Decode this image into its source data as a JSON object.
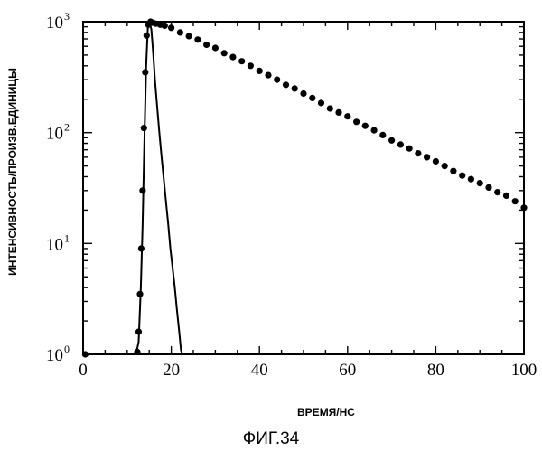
{
  "chart_data": {
    "type": "scatter",
    "xlabel": "ВРЕМЯ/НС",
    "ylabel": "ИНТЕНСИВНОСТЬ/ПРОИЗВ.ЕДИНИЦЫ",
    "xlim": [
      0,
      100
    ],
    "ylim": [
      1,
      1000
    ],
    "yscale": "log",
    "xticks": [
      "0",
      "20",
      "40",
      "60",
      "80",
      "100"
    ],
    "yticks": [
      {
        "base": "10",
        "exp": "0"
      },
      {
        "base": "10",
        "exp": "1"
      },
      {
        "base": "10",
        "exp": "2"
      },
      {
        "base": "10",
        "exp": "3"
      }
    ],
    "grid": false,
    "legend": "none",
    "series": [
      {
        "style": "filled-circle markers",
        "points": [
          [
            0.5,
            1
          ],
          [
            12.3,
            1.05
          ],
          [
            12.6,
            1.6
          ],
          [
            12.9,
            3.5
          ],
          [
            13.2,
            9
          ],
          [
            13.5,
            30
          ],
          [
            13.8,
            110
          ],
          [
            14.1,
            350
          ],
          [
            14.4,
            750
          ],
          [
            14.8,
            940
          ],
          [
            15.3,
            1000
          ],
          [
            15.8,
            980
          ],
          [
            16.5,
            960
          ],
          [
            17.5,
            940
          ],
          [
            18.5,
            920
          ],
          [
            20,
            880
          ],
          [
            22,
            800
          ],
          [
            24,
            740
          ],
          [
            26,
            690
          ],
          [
            28,
            620
          ],
          [
            30,
            580
          ],
          [
            32,
            520
          ],
          [
            34,
            480
          ],
          [
            36,
            440
          ],
          [
            38,
            400
          ],
          [
            40,
            360
          ],
          [
            42,
            330
          ],
          [
            44,
            300
          ],
          [
            46,
            270
          ],
          [
            48,
            250
          ],
          [
            50,
            225
          ],
          [
            52,
            205
          ],
          [
            54,
            185
          ],
          [
            56,
            165
          ],
          [
            58,
            152
          ],
          [
            60,
            140
          ],
          [
            62,
            125
          ],
          [
            64,
            115
          ],
          [
            66,
            105
          ],
          [
            68,
            95
          ],
          [
            70,
            85
          ],
          [
            72,
            78
          ],
          [
            74,
            72
          ],
          [
            76,
            65
          ],
          [
            78,
            60
          ],
          [
            80,
            55
          ],
          [
            82,
            50
          ],
          [
            84,
            45
          ],
          [
            86,
            41
          ],
          [
            88,
            38
          ],
          [
            90,
            35
          ],
          [
            92,
            32
          ],
          [
            94,
            29
          ],
          [
            96,
            27
          ],
          [
            98,
            24
          ],
          [
            100,
            21
          ]
        ]
      },
      {
        "style": "solid line",
        "points": [
          [
            12,
            1
          ],
          [
            12.6,
            1.3
          ],
          [
            13.1,
            4
          ],
          [
            13.5,
            15
          ],
          [
            13.9,
            80
          ],
          [
            14.3,
            400
          ],
          [
            14.7,
            900
          ],
          [
            15.1,
            980
          ],
          [
            15.5,
            850
          ],
          [
            15.9,
            520
          ],
          [
            16.3,
            300
          ],
          [
            16.8,
            170
          ],
          [
            17.3,
            100
          ],
          [
            17.8,
            60
          ],
          [
            18.3,
            38
          ],
          [
            18.8,
            24
          ],
          [
            19.3,
            15
          ],
          [
            19.8,
            9
          ],
          [
            20.3,
            6
          ],
          [
            20.8,
            4
          ],
          [
            21.3,
            2.5
          ],
          [
            21.8,
            1.6
          ],
          [
            22.2,
            1.1
          ],
          [
            22.5,
            1
          ]
        ]
      }
    ]
  },
  "caption": "ФИГ.34"
}
